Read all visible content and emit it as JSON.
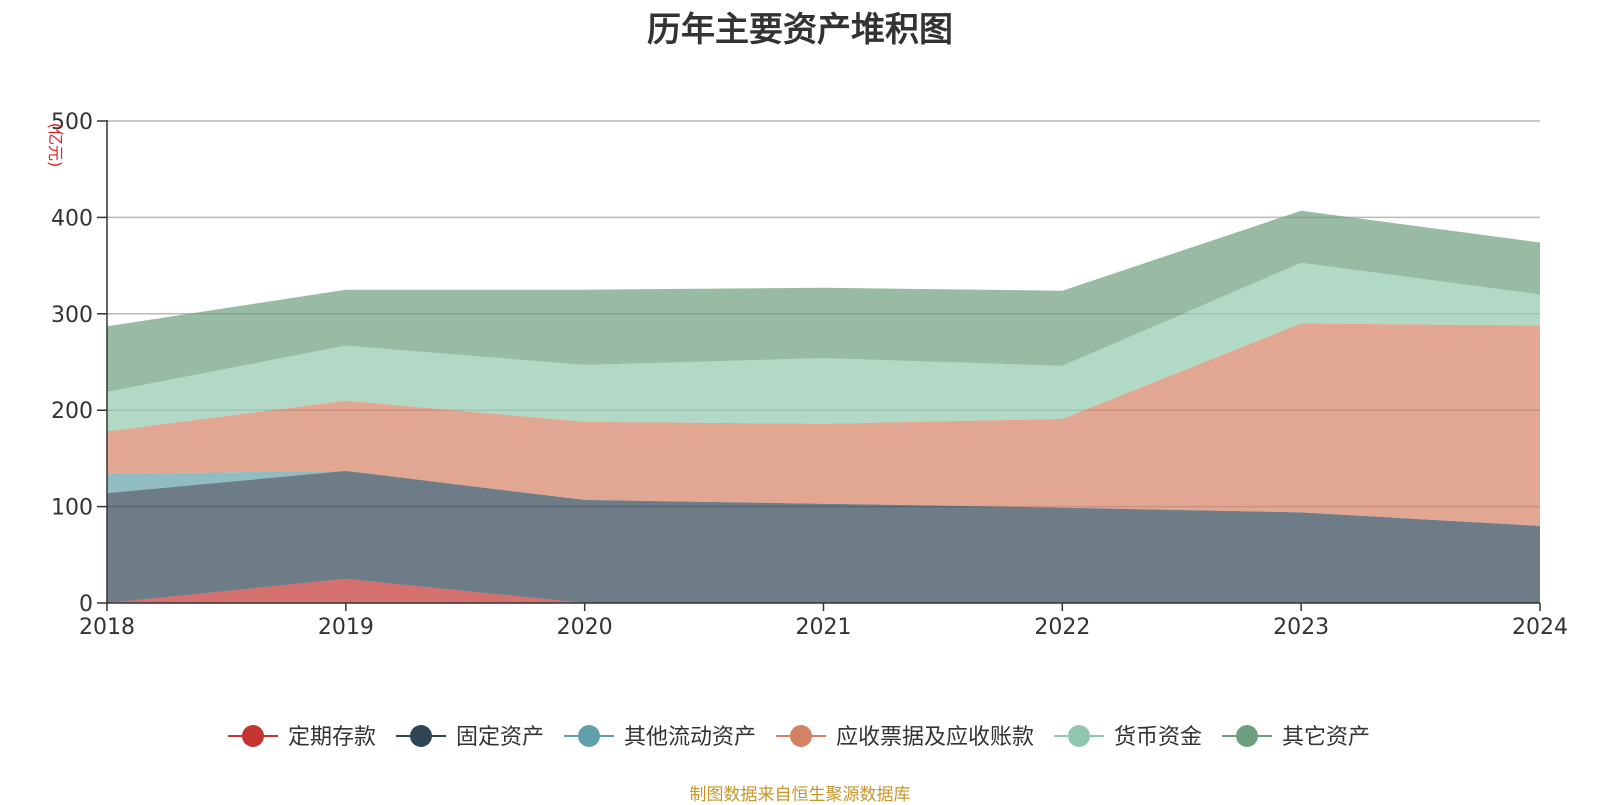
{
  "chart_data": {
    "type": "area",
    "stacked": true,
    "title": "历年主要资产堆积图",
    "unit": "(亿元)",
    "x": [
      "2018",
      "2019",
      "2020",
      "2021",
      "2022",
      "2023",
      "2024"
    ],
    "ylim": [
      0,
      500
    ],
    "yticks": [
      "0",
      "100",
      "200",
      "300",
      "400",
      "500"
    ],
    "grid": true,
    "legend_position": "bottom",
    "series": [
      {
        "name": "定期存款",
        "color": "#c23531",
        "values": [
          0,
          25,
          0,
          0,
          0,
          0,
          0
        ]
      },
      {
        "name": "固定资产",
        "color": "#2f4554",
        "values": [
          114,
          112,
          107,
          103,
          99,
          94,
          80
        ]
      },
      {
        "name": "其他流动资产",
        "color": "#61a0a8",
        "values": [
          20,
          0,
          0,
          0,
          0,
          0,
          0
        ]
      },
      {
        "name": "应收票据及应收账款",
        "color": "#d48265",
        "values": [
          44,
          73,
          81,
          83,
          92,
          196,
          208
        ]
      },
      {
        "name": "货币资金",
        "color": "#91c7ae",
        "values": [
          41,
          57,
          59,
          68,
          55,
          63,
          32
        ]
      },
      {
        "name": "其它资产",
        "color": "#6e9e7e",
        "values": [
          68,
          58,
          78,
          73,
          78,
          54,
          54
        ]
      }
    ]
  },
  "source_note": "制图数据来自恒生聚源数据库"
}
